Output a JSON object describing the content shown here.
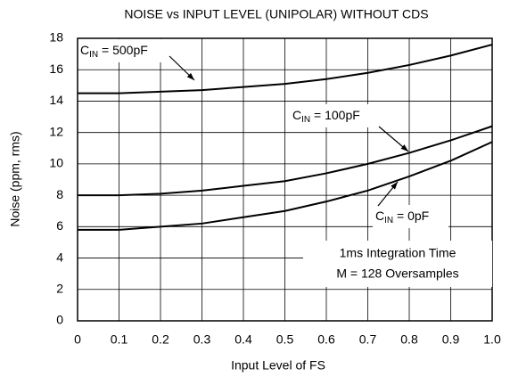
{
  "chart_data": {
    "type": "line",
    "title": "NOISE vs INPUT LEVEL (UNIPOLAR) WITHOUT CDS",
    "x_label": "Input Level of FS",
    "y_label": "Noise (ppm, rms)",
    "x": [
      0,
      0.1,
      0.2,
      0.3,
      0.4,
      0.5,
      0.6,
      0.7,
      0.8,
      0.9,
      1
    ],
    "series": [
      {
        "label": {
          "main": "C",
          "sub": "IN",
          "rest": " = 500pF"
        },
        "color": "#000000",
        "values": [
          14.5,
          14.5,
          14.6,
          14.7,
          14.9,
          15.1,
          15.4,
          15.8,
          16.3,
          16.9,
          17.6
        ]
      },
      {
        "label": {
          "main": "C",
          "sub": "IN",
          "rest": " = 100pF"
        },
        "color": "#000000",
        "values": [
          8.0,
          8.0,
          8.1,
          8.3,
          8.6,
          8.9,
          9.4,
          10.0,
          10.7,
          11.5,
          12.4
        ]
      },
      {
        "label": {
          "main": "C",
          "sub": "IN",
          "rest": " = 0pF"
        },
        "color": "#000000",
        "values": [
          5.8,
          5.8,
          6.0,
          6.2,
          6.6,
          7.0,
          7.6,
          8.3,
          9.2,
          10.2,
          11.4
        ]
      }
    ],
    "annotation": [
      "1ms Integration Time",
      "M = 128 Oversamples"
    ],
    "xlim": [
      0,
      1
    ],
    "xticks": [
      0,
      0.1,
      0.2,
      0.3,
      0.4,
      0.5,
      0.6,
      0.7,
      0.8,
      0.9,
      {
        "value": 1,
        "label": "1.0"
      }
    ],
    "ylim": [
      0,
      18
    ],
    "yticks": [
      0,
      2,
      4,
      6,
      8,
      10,
      12,
      14,
      16,
      18
    ],
    "grid": true
  }
}
